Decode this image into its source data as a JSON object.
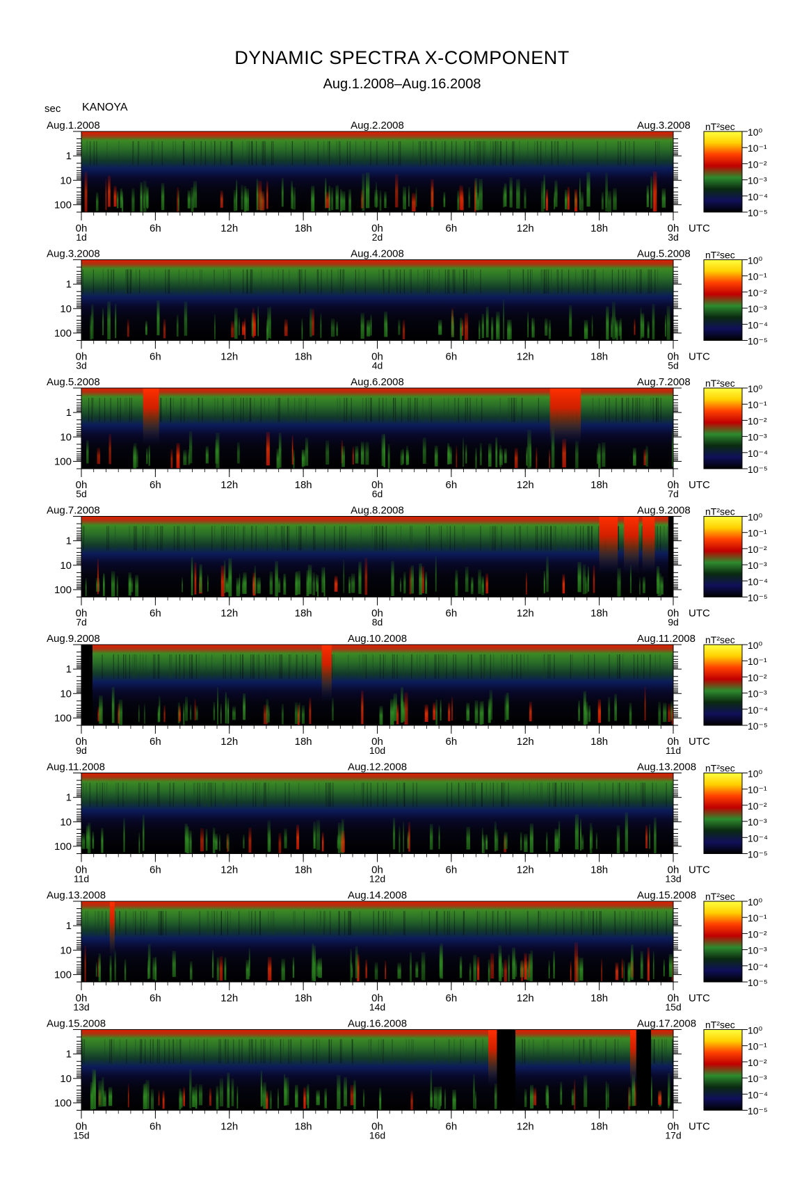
{
  "chart_data": {
    "type": "heatmap",
    "title": "DYNAMIC SPECTRA X-COMPONENT",
    "subtitle": "Aug.1.2008–Aug.16.2008",
    "station": "KANOYA",
    "y_axis_label": "sec",
    "y_ticks": [
      "1",
      "10",
      "100"
    ],
    "x_ticks": [
      "0h",
      "6h",
      "12h",
      "18h",
      "0h",
      "6h",
      "12h",
      "18h",
      "0h"
    ],
    "x_unit": "UTC",
    "colorbar": {
      "unit": "nT²sec",
      "levels": [
        "10⁰",
        "10⁻¹",
        "10⁻²",
        "10⁻³",
        "10⁻⁴",
        "10⁻⁵"
      ],
      "colors": [
        "#ffff40",
        "#ffd000",
        "#ff4000",
        "#c00000",
        "#2e8b2e",
        "#0a2a10",
        "#10105a",
        "#000000"
      ]
    },
    "panels": [
      {
        "start_label": "Aug.1.2008",
        "mid_label": "Aug.2.2008",
        "end_label": "Aug.3.2008",
        "day_labels": [
          "1d",
          "2d",
          "3d"
        ],
        "gaps_hours": []
      },
      {
        "start_label": "Aug.3.2008",
        "mid_label": "Aug.4.2008",
        "end_label": "Aug.5.2008",
        "day_labels": [
          "3d",
          "4d",
          "5d"
        ],
        "gaps_hours": []
      },
      {
        "start_label": "Aug.5.2008",
        "mid_label": "Aug.6.2008",
        "end_label": "Aug.7.2008",
        "day_labels": [
          "5d",
          "6d",
          "7d"
        ],
        "gaps_hours": []
      },
      {
        "start_label": "Aug.7.2008",
        "mid_label": "Aug.8.2008",
        "end_label": "Aug.9.2008",
        "day_labels": [
          "7d",
          "8d",
          "9d"
        ],
        "gaps_hours": [
          [
            47.6,
            48
          ]
        ]
      },
      {
        "start_label": "Aug.9.2008",
        "mid_label": "Aug.10.2008",
        "end_label": "Aug.11.2008",
        "day_labels": [
          "9d",
          "10d",
          "11d"
        ],
        "gaps_hours": [
          [
            0,
            0.9
          ]
        ]
      },
      {
        "start_label": "Aug.11.2008",
        "mid_label": "Aug.12.2008",
        "end_label": "Aug.13.2008",
        "day_labels": [
          "11d",
          "12d",
          "13d"
        ],
        "gaps_hours": []
      },
      {
        "start_label": "Aug.13.2008",
        "mid_label": "Aug.14.2008",
        "end_label": "Aug.15.2008",
        "day_labels": [
          "13d",
          "14d",
          "15d"
        ],
        "gaps_hours": []
      },
      {
        "start_label": "Aug.15.2008",
        "mid_label": "Aug.16.2008",
        "end_label": "Aug.17.2008",
        "day_labels": [
          "15d",
          "16d",
          "17d"
        ],
        "gaps_hours": [
          [
            33.7,
            35.2
          ],
          [
            45.0,
            46.2
          ]
        ]
      }
    ]
  }
}
